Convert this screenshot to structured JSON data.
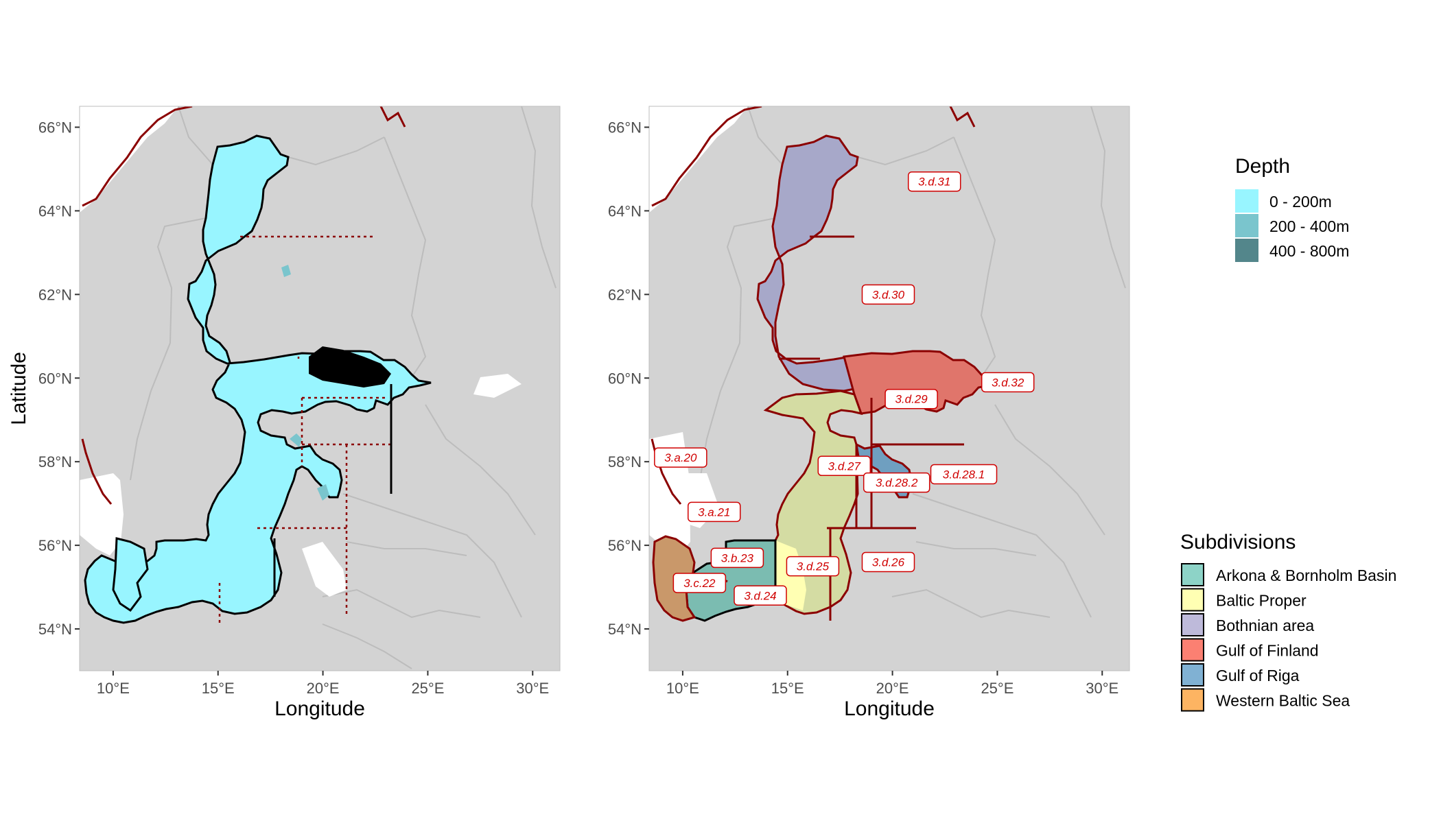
{
  "panels": [
    {
      "id": "depth-map",
      "xlabel": "Longitude",
      "ylabel": "Latitude",
      "x_ticks": [
        "10°E",
        "15°E",
        "20°E",
        "25°E",
        "30°E"
      ],
      "y_ticks": [
        "66°N",
        "64°N",
        "62°N",
        "60°N",
        "58°N",
        "56°N",
        "54°N"
      ]
    },
    {
      "id": "subdivision-map",
      "xlabel": "Longitude",
      "ylabel": "",
      "x_ticks": [
        "10°E",
        "15°E",
        "20°E",
        "25°E",
        "30°E"
      ],
      "y_ticks": [
        "66°N",
        "64°N",
        "62°N",
        "60°N",
        "58°N",
        "56°N",
        "54°N"
      ]
    }
  ],
  "chart_data": {
    "type": "map",
    "x_values": [
      10,
      15,
      20,
      25,
      30
    ],
    "y_values": [
      66,
      64,
      62,
      60,
      58,
      56,
      54
    ],
    "xlim": [
      8.4,
      31.3
    ],
    "ylim": [
      53.0,
      66.5
    ],
    "background_color": "#d3d3d3",
    "coast_color": "#8b0000",
    "depth_legend": {
      "title": "Depth",
      "entries": [
        {
          "label": "0 - 200m",
          "color": "#98f5ff"
        },
        {
          "label": "200 - 400m",
          "color": "#7ac5cd"
        },
        {
          "label": "400 - 800m",
          "color": "#53868b"
        }
      ]
    },
    "subdivision_legend": {
      "title": "Subdivisions",
      "entries": [
        {
          "label": "Arkona & Bornholm Basin",
          "color": "#8dd3c7"
        },
        {
          "label": "Baltic Proper",
          "color": "#ffffb3"
        },
        {
          "label": "Bothnian area",
          "color": "#bebada"
        },
        {
          "label": "Gulf of Finland",
          "color": "#fb8072"
        },
        {
          "label": "Gulf of Riga",
          "color": "#80b1d3"
        },
        {
          "label": "Western Baltic Sea",
          "color": "#fdb462"
        }
      ]
    },
    "subdivision_labels": [
      {
        "label": "3.d.31",
        "lon": 22.0,
        "lat": 64.7
      },
      {
        "label": "3.d.30",
        "lon": 19.8,
        "lat": 62.0
      },
      {
        "label": "3.d.32",
        "lon": 25.5,
        "lat": 59.9
      },
      {
        "label": "3.d.29",
        "lon": 20.9,
        "lat": 59.5
      },
      {
        "label": "3.d.27",
        "lon": 17.7,
        "lat": 57.9
      },
      {
        "label": "3.d.28.2",
        "lon": 20.2,
        "lat": 57.5
      },
      {
        "label": "3.d.28.1",
        "lon": 23.4,
        "lat": 57.7
      },
      {
        "label": "3.a.20",
        "lon": 9.9,
        "lat": 58.1
      },
      {
        "label": "3.a.21",
        "lon": 11.5,
        "lat": 56.8
      },
      {
        "label": "3.b.23",
        "lon": 12.6,
        "lat": 55.7
      },
      {
        "label": "3.c.22",
        "lon": 10.8,
        "lat": 55.1
      },
      {
        "label": "3.d.24",
        "lon": 13.7,
        "lat": 54.8
      },
      {
        "label": "3.d.25",
        "lon": 16.2,
        "lat": 55.5
      },
      {
        "label": "3.d.26",
        "lon": 19.8,
        "lat": 55.6
      }
    ]
  }
}
